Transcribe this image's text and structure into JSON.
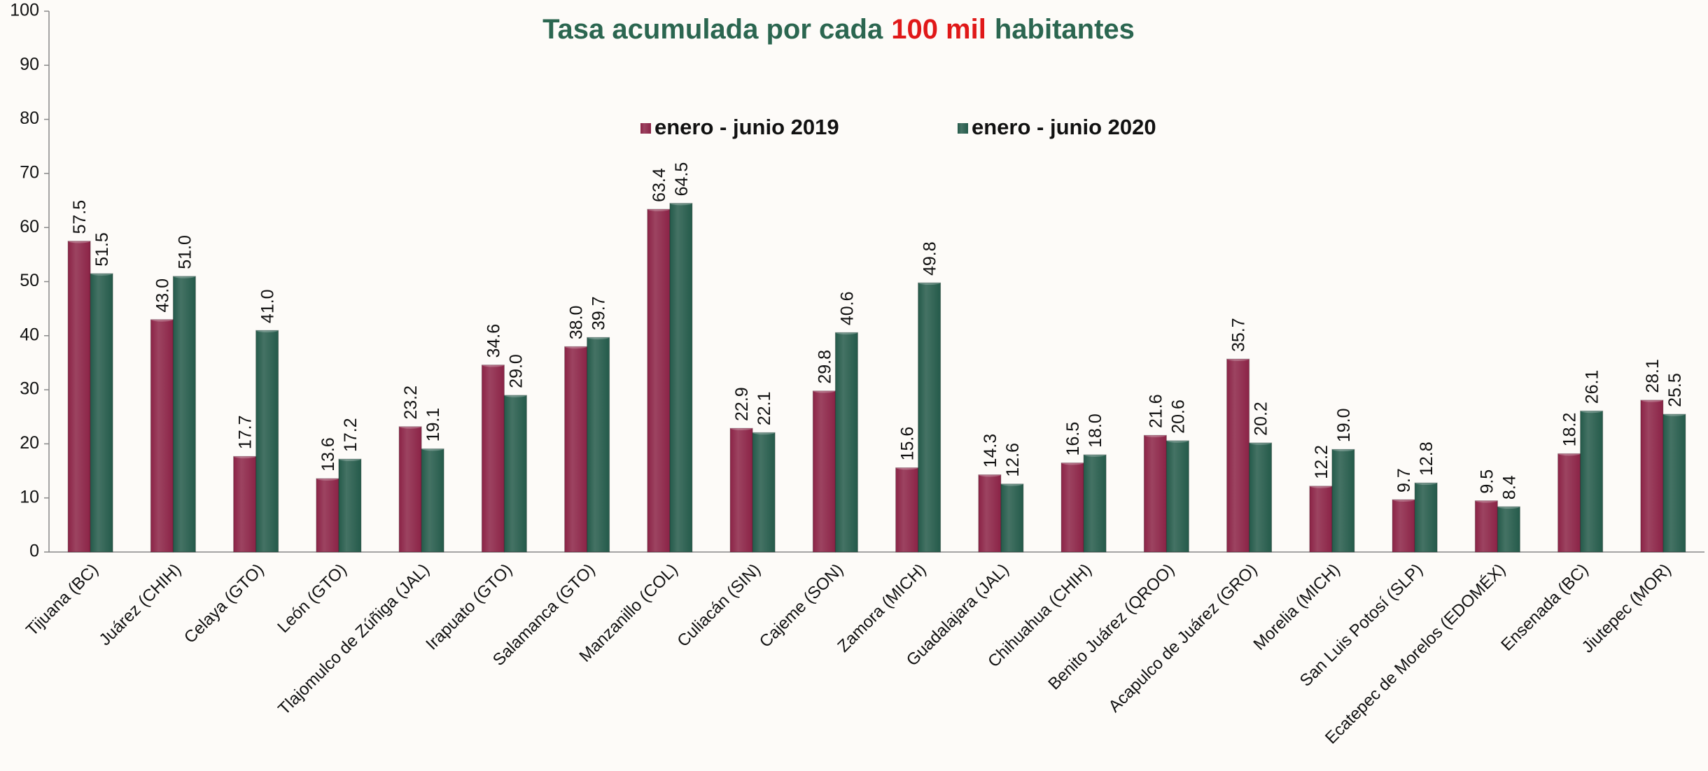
{
  "chart_data": {
    "type": "bar",
    "title": [
      "Tasa acumulada por cada",
      "100 mil",
      "habitantes"
    ],
    "categories": [
      "Tijuana (BC)",
      "Juárez (CHIH)",
      "Celaya (GTO)",
      "León (GTO)",
      "Tlajomulco de Zúñiga (JAL)",
      "Irapuato (GTO)",
      "Salamanca (GTO)",
      "Manzanillo (COL)",
      "Culiacán (SIN)",
      "Cajeme (SON)",
      "Zamora (MICH)",
      "Guadalajara (JAL)",
      "Chihuahua (CHIH)",
      "Benito Juárez (QROO)",
      "Acapulco de Juárez (GRO)",
      "Morelia (MICH)",
      "San Luis Potosí (SLP)",
      "Ecatepec de Morelos (EDOMÉX)",
      "Ensenada (BC)",
      "Jiutepec (MOR)"
    ],
    "series": [
      {
        "name": "enero - junio 2019",
        "color": "#8b2346",
        "values": [
          57.5,
          43.0,
          17.7,
          13.6,
          23.2,
          34.6,
          38.0,
          63.4,
          22.9,
          29.8,
          15.6,
          14.3,
          16.5,
          21.6,
          35.7,
          12.2,
          9.7,
          9.5,
          18.2,
          28.1
        ],
        "value_labels": [
          "57.5",
          "43.0",
          "17.7",
          "13.6",
          "23.2",
          "34.6",
          "38.0",
          "63.4",
          "22.9",
          "29.8",
          "15.6",
          "14.3",
          "16.5",
          "21.6",
          "35.7",
          "12.2",
          "9.7",
          "9.5",
          "18.2",
          "28.1"
        ]
      },
      {
        "name": "enero - junio 2020",
        "color": "#245a4a",
        "values": [
          51.5,
          51.0,
          41.0,
          17.2,
          19.1,
          29.0,
          39.7,
          64.5,
          22.1,
          40.6,
          49.8,
          12.6,
          18.0,
          20.6,
          20.2,
          19.0,
          12.8,
          8.4,
          26.1,
          25.5
        ],
        "value_labels": [
          "51.5",
          "51.0",
          "41.0",
          "17.2",
          "19.1",
          "29.0",
          "39.7",
          "64.5",
          "22.1",
          "40.6",
          "49.8",
          "12.6",
          "18.0",
          "20.6",
          "20.2",
          "19.0",
          "12.8",
          "8.4",
          "26.1",
          "25.5"
        ]
      }
    ],
    "ylim": [
      0,
      100
    ],
    "yticks": [
      0,
      10,
      20,
      30,
      40,
      50,
      60,
      70,
      80,
      90,
      100
    ],
    "grid": false,
    "legend": "top"
  }
}
